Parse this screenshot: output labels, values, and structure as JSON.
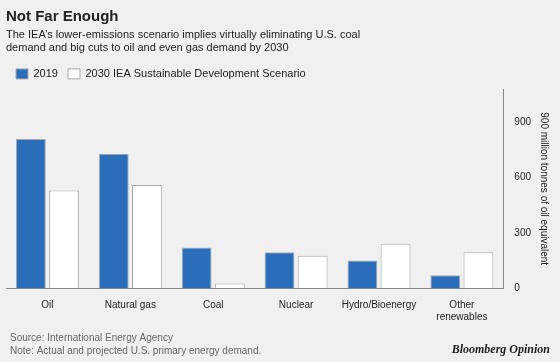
{
  "chart_data": {
    "type": "bar",
    "title": "Not Far Enough",
    "subtitle": "The IEA’s lower-emissions scenario implies virtually eliminating U.S. coal\ndemand and big cuts to oil and even gas demand by 2030",
    "ylabel": "900 million tonnes of oil equivalent",
    "annotations": [
      "Source: International Energy Agency\nNote: Actual and projected U.S. primary energy demand.",
      "Bloomberg Opinion"
    ],
    "categories": [
      "Oil",
      "Natural gas",
      "Coal",
      "Nuclear",
      "Hydro/Bioenergy",
      "Other\nrenewables"
    ],
    "series": [
      {
        "name": "2019",
        "color": "#2a6ebb",
        "values": [
          810,
          730,
          220,
          195,
          150,
          70
        ]
      },
      {
        "name": "2030 IEA Sustainable Development Scenario",
        "color": "#ffffff",
        "values": [
          530,
          560,
          25,
          175,
          240,
          195
        ]
      }
    ],
    "ylim": [
      0,
      1080
    ],
    "yticks": [
      0,
      300,
      600,
      900
    ],
    "grid": false,
    "legend": "top"
  }
}
